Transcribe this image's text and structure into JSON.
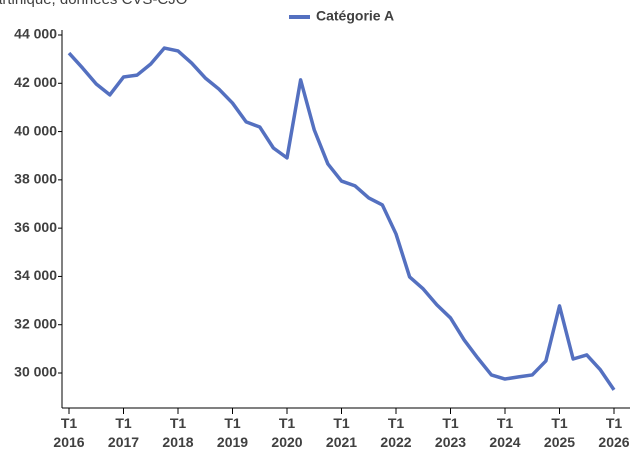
{
  "chart_data": {
    "type": "line",
    "subtitle": "artinique, données CVS-CJO",
    "categories": [
      "T1 2016",
      null,
      null,
      null,
      "T1 2017",
      null,
      null,
      null,
      "T1 2018",
      null,
      null,
      null,
      "T1 2019",
      null,
      null,
      null,
      "T1 2020",
      null,
      null,
      null,
      "T1 2021",
      null,
      null,
      null,
      "T1 2022",
      null,
      null,
      null,
      "T1 2023",
      null,
      null,
      null,
      "T1 2024",
      null,
      null,
      null,
      "T1 2025",
      null,
      null,
      null,
      "T1 2026"
    ],
    "series": [
      {
        "name": "Catégorie A",
        "color": "#5470c0",
        "values": [
          43250,
          42630,
          41970,
          41520,
          42260,
          42340,
          42800,
          43460,
          43340,
          42840,
          42220,
          41760,
          41180,
          40400,
          40190,
          39320,
          38910,
          42140,
          40070,
          38660,
          37950,
          37750,
          37250,
          36960,
          35760,
          33980,
          33480,
          32820,
          32280,
          31370,
          30620,
          29920,
          29750,
          29840,
          29920,
          30500,
          32780,
          30580,
          30750,
          30130,
          29300
        ]
      }
    ],
    "ylim": [
      28550,
      44000
    ],
    "yticks": [
      {
        "value": 30000,
        "label": "30 000"
      },
      {
        "value": 32000,
        "label": "32 000"
      },
      {
        "value": 34000,
        "label": "34 000"
      },
      {
        "value": 36000,
        "label": "36 000"
      },
      {
        "value": 38000,
        "label": "38 000"
      },
      {
        "value": 40000,
        "label": "40 000"
      },
      {
        "value": 42000,
        "label": "42 000"
      },
      {
        "value": 44000,
        "label": "44 000"
      }
    ],
    "grid": false,
    "legend": "top"
  }
}
